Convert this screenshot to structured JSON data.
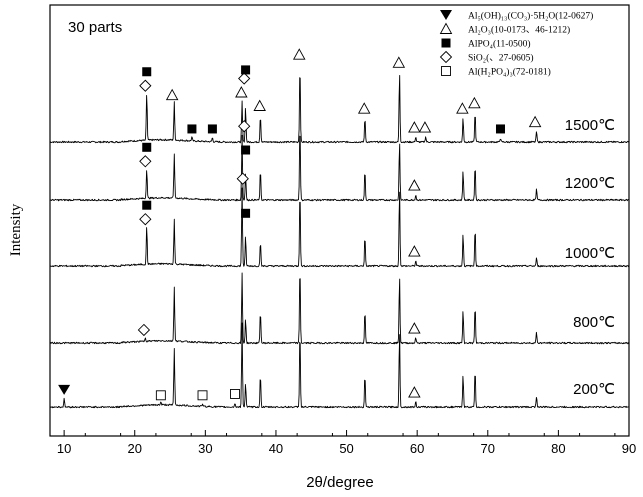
{
  "chart_data": {
    "type": "line",
    "title": "30 parts",
    "xlabel": "2θ/degree",
    "ylabel": "Intensity",
    "xlim": [
      8,
      90
    ],
    "xticks": [
      10,
      20,
      30,
      40,
      50,
      60,
      70,
      80,
      90
    ],
    "grid": false,
    "legend_position": "top-right",
    "legend": [
      {
        "symbol": "filled-triangle-down",
        "label": "Al₅(OH)₁₃(CO₃)·5H₂O(12-0627)"
      },
      {
        "symbol": "open-triangle",
        "label": "Al₂O₃(10-0173、46-1212)"
      },
      {
        "symbol": "filled-square",
        "label": "AlPO₄(11-0500)"
      },
      {
        "symbol": "open-diamond",
        "label": "SiO₂(、27-0605)"
      },
      {
        "symbol": "open-square",
        "label": "Al(H₂PO₄)₃(72-0181)"
      }
    ],
    "series": [
      {
        "name": "1500℃",
        "peaks": [
          {
            "x": 21.7,
            "h": 35
          },
          {
            "x": 25.6,
            "h": 28
          },
          {
            "x": 28.1,
            "h": 3
          },
          {
            "x": 31.0,
            "h": 3
          },
          {
            "x": 35.2,
            "h": 30
          },
          {
            "x": 35.7,
            "h": 26
          },
          {
            "x": 37.8,
            "h": 20
          },
          {
            "x": 43.4,
            "h": 58
          },
          {
            "x": 52.6,
            "h": 18
          },
          {
            "x": 57.5,
            "h": 52
          },
          {
            "x": 59.8,
            "h": 4
          },
          {
            "x": 61.2,
            "h": 4
          },
          {
            "x": 66.5,
            "h": 18
          },
          {
            "x": 68.2,
            "h": 22
          },
          {
            "x": 71.8,
            "h": 3
          },
          {
            "x": 76.9,
            "h": 8
          }
        ],
        "markers": [
          {
            "x": 21.5,
            "symbol": "open-diamond"
          },
          {
            "x": 21.7,
            "symbol": "filled-square"
          },
          {
            "x": 25.3,
            "symbol": "open-triangle"
          },
          {
            "x": 28.1,
            "symbol": "filled-square"
          },
          {
            "x": 31.0,
            "symbol": "filled-square"
          },
          {
            "x": 35.1,
            "symbol": "open-triangle"
          },
          {
            "x": 35.5,
            "symbol": "open-diamond"
          },
          {
            "x": 35.7,
            "symbol": "filled-square"
          },
          {
            "x": 37.7,
            "symbol": "open-triangle"
          },
          {
            "x": 43.3,
            "symbol": "open-triangle"
          },
          {
            "x": 52.5,
            "symbol": "open-triangle"
          },
          {
            "x": 57.4,
            "symbol": "open-triangle"
          },
          {
            "x": 59.6,
            "symbol": "open-triangle"
          },
          {
            "x": 61.1,
            "symbol": "open-triangle"
          },
          {
            "x": 66.4,
            "symbol": "open-triangle"
          },
          {
            "x": 68.1,
            "symbol": "open-triangle"
          },
          {
            "x": 71.8,
            "symbol": "filled-square"
          },
          {
            "x": 76.7,
            "symbol": "open-triangle"
          }
        ]
      },
      {
        "name": "1200℃",
        "peaks": [
          {
            "x": 21.7,
            "h": 22
          },
          {
            "x": 25.6,
            "h": 33
          },
          {
            "x": 35.2,
            "h": 48
          },
          {
            "x": 35.7,
            "h": 20
          },
          {
            "x": 37.8,
            "h": 22
          },
          {
            "x": 43.4,
            "h": 58
          },
          {
            "x": 52.6,
            "h": 22
          },
          {
            "x": 57.5,
            "h": 44
          },
          {
            "x": 59.8,
            "h": 4
          },
          {
            "x": 66.5,
            "h": 22
          },
          {
            "x": 68.2,
            "h": 26
          },
          {
            "x": 76.9,
            "h": 8
          }
        ],
        "markers": [
          {
            "x": 21.5,
            "symbol": "open-diamond"
          },
          {
            "x": 21.7,
            "symbol": "filled-square"
          },
          {
            "x": 35.5,
            "symbol": "open-diamond"
          },
          {
            "x": 35.7,
            "symbol": "filled-square"
          },
          {
            "x": 59.6,
            "symbol": "open-triangle"
          }
        ]
      },
      {
        "name": "1000℃",
        "peaks": [
          {
            "x": 21.7,
            "h": 28
          },
          {
            "x": 25.6,
            "h": 33
          },
          {
            "x": 35.2,
            "h": 58
          },
          {
            "x": 35.7,
            "h": 22
          },
          {
            "x": 37.8,
            "h": 18
          },
          {
            "x": 43.4,
            "h": 58
          },
          {
            "x": 52.6,
            "h": 22
          },
          {
            "x": 57.5,
            "h": 58
          },
          {
            "x": 59.8,
            "h": 4
          },
          {
            "x": 66.5,
            "h": 24
          },
          {
            "x": 68.2,
            "h": 28
          },
          {
            "x": 76.9,
            "h": 6
          }
        ],
        "markers": [
          {
            "x": 21.5,
            "symbol": "open-diamond"
          },
          {
            "x": 21.7,
            "symbol": "filled-square"
          },
          {
            "x": 35.3,
            "symbol": "open-diamond"
          },
          {
            "x": 35.7,
            "symbol": "filled-square"
          },
          {
            "x": 59.6,
            "symbol": "open-triangle"
          }
        ]
      },
      {
        "name": "800℃",
        "peaks": [
          {
            "x": 21.5,
            "h": 3
          },
          {
            "x": 25.6,
            "h": 40
          },
          {
            "x": 35.2,
            "h": 52
          },
          {
            "x": 35.7,
            "h": 18
          },
          {
            "x": 37.8,
            "h": 24
          },
          {
            "x": 43.4,
            "h": 58
          },
          {
            "x": 52.6,
            "h": 24
          },
          {
            "x": 57.5,
            "h": 50
          },
          {
            "x": 59.8,
            "h": 4
          },
          {
            "x": 66.5,
            "h": 24
          },
          {
            "x": 68.2,
            "h": 28
          },
          {
            "x": 76.9,
            "h": 8
          }
        ],
        "markers": [
          {
            "x": 21.3,
            "symbol": "open-diamond"
          },
          {
            "x": 59.6,
            "symbol": "open-triangle"
          }
        ]
      },
      {
        "name": "200℃",
        "peaks": [
          {
            "x": 10.0,
            "h": 6
          },
          {
            "x": 23.7,
            "h": 2
          },
          {
            "x": 25.6,
            "h": 42
          },
          {
            "x": 29.6,
            "h": 2
          },
          {
            "x": 34.2,
            "h": 3
          },
          {
            "x": 35.2,
            "h": 62
          },
          {
            "x": 35.7,
            "h": 18
          },
          {
            "x": 37.8,
            "h": 24
          },
          {
            "x": 43.4,
            "h": 58
          },
          {
            "x": 52.6,
            "h": 24
          },
          {
            "x": 57.5,
            "h": 56
          },
          {
            "x": 59.8,
            "h": 4
          },
          {
            "x": 66.5,
            "h": 24
          },
          {
            "x": 68.2,
            "h": 28
          },
          {
            "x": 76.9,
            "h": 8
          }
        ],
        "markers": [
          {
            "x": 10.0,
            "symbol": "filled-triangle-down"
          },
          {
            "x": 23.7,
            "symbol": "open-square"
          },
          {
            "x": 29.6,
            "symbol": "open-square"
          },
          {
            "x": 34.2,
            "symbol": "open-square"
          },
          {
            "x": 59.6,
            "symbol": "open-triangle"
          }
        ]
      }
    ]
  }
}
